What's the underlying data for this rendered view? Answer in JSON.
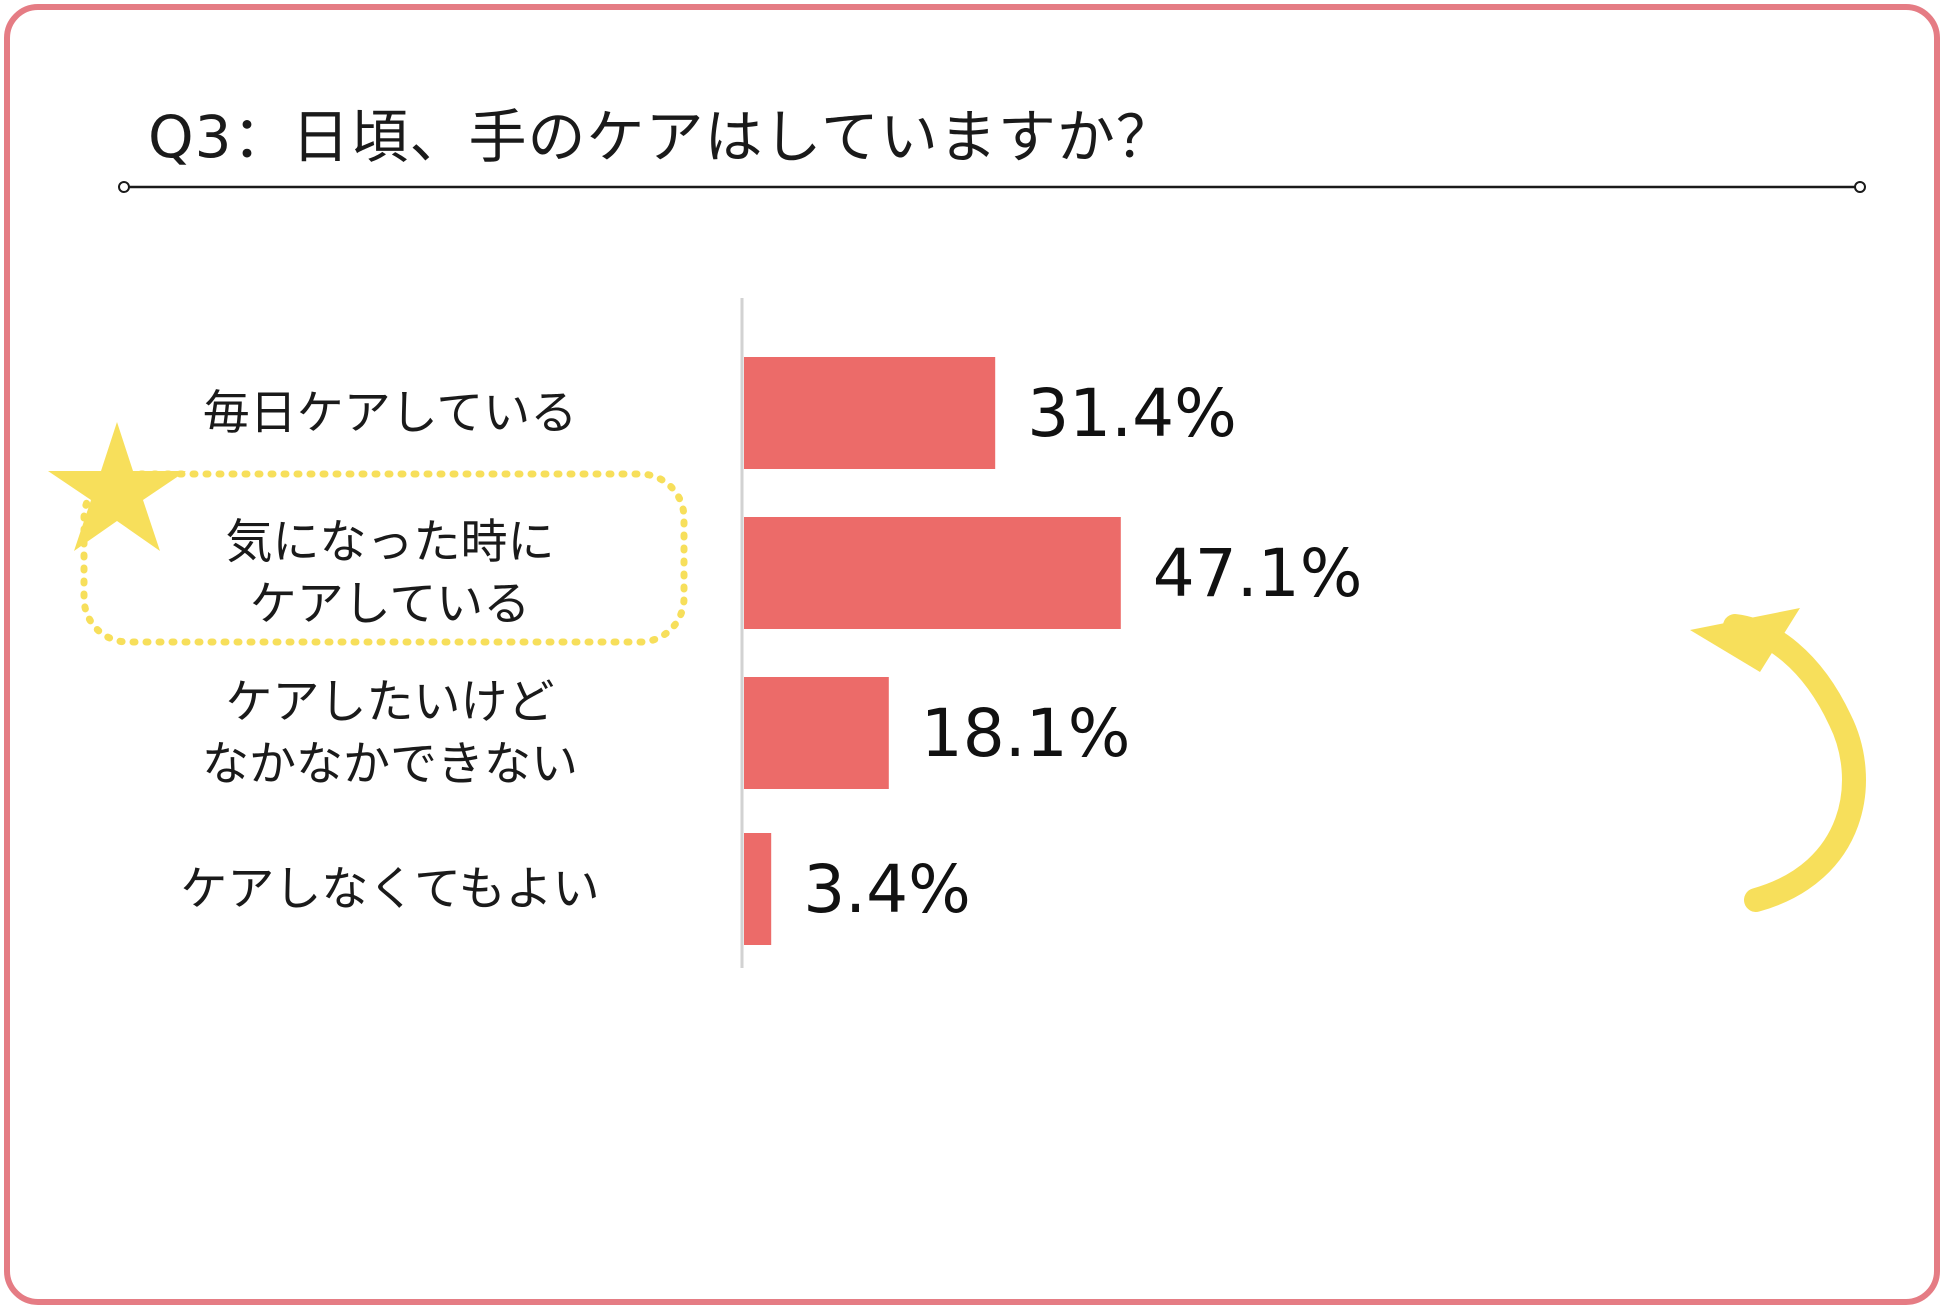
{
  "title": "Q3：日頃、手のケアはしていますか？",
  "colors": {
    "frame": "#e57c84",
    "bar": "#ec6b69",
    "highlight": "#f7df5b",
    "text": "#1a1a1a"
  },
  "chart_data": {
    "type": "bar",
    "orientation": "horizontal",
    "categories": [
      [
        "毎日ケアしている"
      ],
      [
        "気になった時に",
        "ケアしている"
      ],
      [
        "ケアしたいけど",
        "なかなかできない"
      ],
      [
        "ケアしなくてもよい"
      ]
    ],
    "values": [
      31.4,
      47.1,
      18.1,
      3.4
    ],
    "value_labels": [
      "31.4%",
      "47.1%",
      "18.1%",
      "3.4%"
    ],
    "unit": "%",
    "xlim": [
      0,
      100
    ],
    "highlighted_category_index": 1,
    "grid": false,
    "legend": "none"
  }
}
